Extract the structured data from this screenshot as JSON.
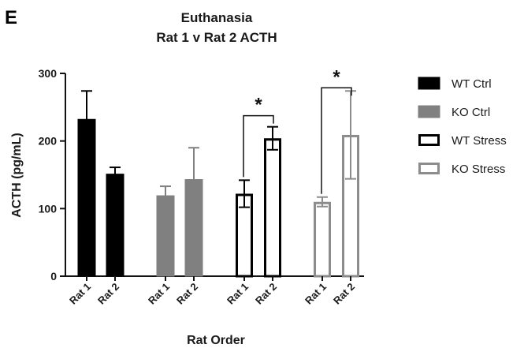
{
  "panel_label": "E",
  "chart_data": {
    "type": "bar",
    "title": "Euthanasia",
    "subtitle": "Rat 1 v Rat 2 ACTH",
    "xlabel": "Rat Order",
    "ylabel": "ACTH (pg/mL)",
    "ylim": [
      0,
      300
    ],
    "yticks": [
      "0",
      "100",
      "200",
      "300"
    ],
    "grid": false,
    "legend_position": "right",
    "categories": [
      "Rat 1",
      "Rat 2"
    ],
    "significance_marker": "*",
    "series": [
      {
        "name": "WT Ctrl",
        "fill": "#000000",
        "stroke": "#000000",
        "values": [
          232,
          151
        ],
        "errors": [
          42,
          10
        ],
        "significant": false
      },
      {
        "name": "KO Ctrl",
        "fill": "#808080",
        "stroke": "#808080",
        "values": [
          119,
          143
        ],
        "errors": [
          14,
          47
        ],
        "significant": false
      },
      {
        "name": "WT Stress",
        "fill": "#ffffff",
        "stroke": "#000000",
        "values": [
          122,
          204
        ],
        "errors": [
          20,
          17
        ],
        "significant": true
      },
      {
        "name": "KO Stress",
        "fill": "#ffffff",
        "stroke": "#8c8c8c",
        "values": [
          110,
          209
        ],
        "errors": [
          7,
          65
        ],
        "significant": true
      }
    ]
  }
}
